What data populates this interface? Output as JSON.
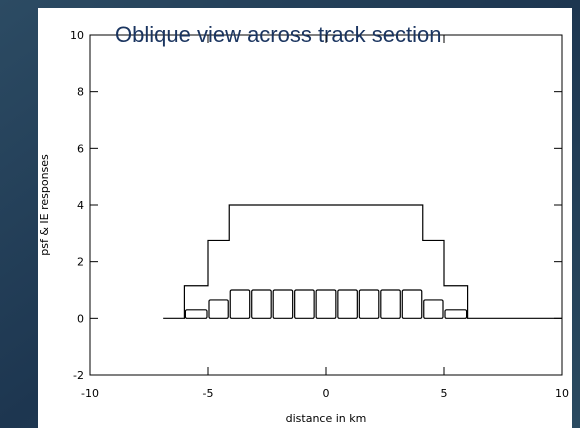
{
  "chart_data": {
    "type": "line",
    "title": "Oblique view across track section",
    "xlabel": "distance in km",
    "ylabel": "psf & IE responses",
    "series": [
      {
        "x": [
          -6.9,
          -6,
          -6,
          -5,
          -5,
          -4.1,
          -4.1,
          4.1,
          4.1,
          5,
          5,
          6,
          6,
          10
        ],
        "values": [
          0,
          0,
          1.15,
          1.15,
          2.75,
          2.75,
          4,
          4,
          2.75,
          2.75,
          1.15,
          1.15,
          0,
          0
        ],
        "color": "#000000"
      }
    ],
    "boxes": {
      "bins": [
        -6,
        -5,
        -4.1,
        -3.19,
        -2.28,
        -1.37,
        -0.46,
        0.46,
        1.37,
        2.28,
        3.19,
        4.1,
        5,
        6
      ],
      "values": [
        0.3,
        0.65,
        1,
        1,
        1,
        1,
        1,
        1,
        1,
        1,
        1,
        0.65,
        0.3
      ],
      "color": "#000000"
    },
    "xlim": [
      -10,
      10
    ],
    "xticks": [
      -10,
      -5,
      0,
      5,
      10
    ],
    "ylim": [
      -2,
      10
    ],
    "yticks": [
      -2,
      0,
      2,
      4,
      6,
      8,
      10
    ]
  }
}
